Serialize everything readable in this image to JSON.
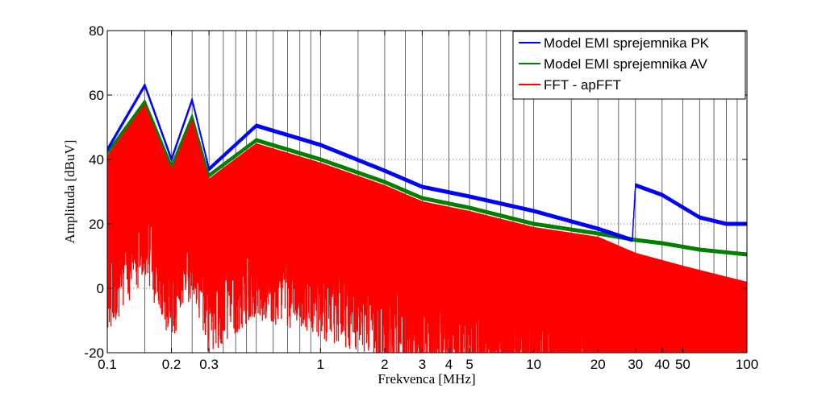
{
  "chart_data": {
    "type": "line",
    "xlabel": "Frekvenca [MHz]",
    "ylabel": "Amplituda [dBuV]",
    "x_scale": "log",
    "xlim": [
      0.1,
      100
    ],
    "ylim": [
      -20,
      80
    ],
    "grid": true,
    "legend_position": "top-right",
    "x_ticks": [
      0.1,
      0.2,
      0.3,
      1,
      2,
      3,
      4,
      5,
      10,
      20,
      30,
      40,
      50,
      100
    ],
    "x_tick_labels": [
      "0.1",
      "0.2",
      "0.3",
      "1",
      "2",
      "3",
      "4",
      "5",
      "10",
      "20",
      "30",
      "40",
      "50",
      "100"
    ],
    "y_ticks": [
      -20,
      0,
      20,
      40,
      60,
      80
    ],
    "y_tick_labels": [
      "-20",
      "0",
      "20",
      "40",
      "60",
      "80"
    ],
    "x_minor_lines": [
      0.15,
      0.25,
      0.35,
      0.4,
      0.45,
      0.5,
      0.6,
      0.7,
      0.8,
      0.9,
      1.5,
      2.5,
      6,
      7,
      8,
      9,
      15,
      25,
      60,
      70,
      80,
      90
    ],
    "series": [
      {
        "name": "Model EMI sprejemnika PK",
        "color": "#0000ff",
        "x": [
          0.1,
          0.15,
          0.2,
          0.25,
          0.3,
          0.5,
          1,
          2,
          3,
          5,
          10,
          20,
          29,
          30,
          40,
          60,
          80,
          100
        ],
        "y": [
          43,
          63,
          40,
          58.5,
          37,
          50.5,
          44.5,
          36.5,
          31.5,
          28.5,
          24,
          18.5,
          15,
          32,
          29,
          22,
          20,
          20
        ]
      },
      {
        "name": "Model EMI sprejemnika AV",
        "color": "#008000",
        "x": [
          0.1,
          0.15,
          0.2,
          0.25,
          0.3,
          0.5,
          1,
          2,
          3,
          5,
          10,
          20,
          30,
          40,
          60,
          100
        ],
        "y": [
          42,
          58,
          38,
          53.5,
          35,
          46,
          40,
          33,
          28,
          25,
          20,
          17,
          15,
          14,
          12,
          10.5
        ]
      },
      {
        "name": "FFT - apFFT",
        "color": "#ff0000",
        "x": [
          0.1,
          0.15,
          0.2,
          0.25,
          0.3,
          0.5,
          1,
          2,
          3,
          5,
          10,
          20,
          30,
          50,
          100
        ],
        "y": [
          41,
          57.5,
          37,
          53,
          34,
          45,
          39,
          32,
          27,
          24,
          19,
          16,
          11,
          7,
          2
        ]
      }
    ]
  }
}
